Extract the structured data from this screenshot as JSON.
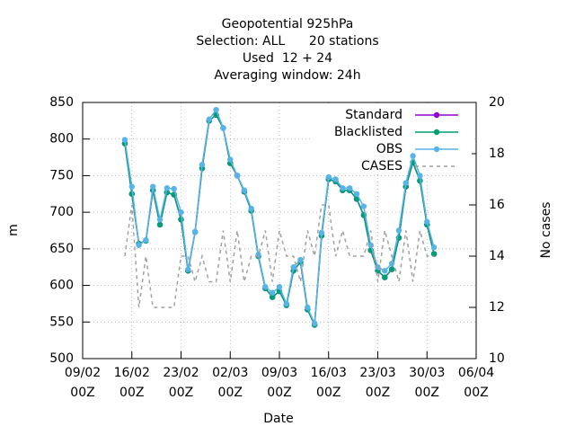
{
  "chart_data": {
    "type": "line",
    "title": "Geopotential 925hPa",
    "subtitle": [
      "Selection: ALL      20 stations",
      "Used  12 + 24",
      "Averaging window: 24h"
    ],
    "xlabel": "Date",
    "ylabel": "m",
    "y2label": "No cases",
    "x": [
      "15/02 00Z",
      "16/02 00Z",
      "17/02 00Z",
      "18/02 00Z",
      "19/02 00Z",
      "20/02 00Z",
      "21/02 00Z",
      "22/02 00Z",
      "23/02 00Z",
      "24/02 00Z",
      "25/02 00Z",
      "26/02 00Z",
      "27/02 00Z",
      "28/02 00Z",
      "01/03 00Z",
      "02/03 00Z",
      "03/03 00Z",
      "04/03 00Z",
      "05/03 00Z",
      "06/03 00Z",
      "07/03 00Z",
      "08/03 00Z",
      "09/03 00Z",
      "10/03 00Z",
      "11/03 00Z",
      "12/03 00Z",
      "13/03 00Z",
      "14/03 00Z",
      "15/03 00Z",
      "16/03 00Z",
      "17/03 00Z",
      "18/03 00Z",
      "19/03 00Z",
      "20/03 00Z",
      "21/03 00Z",
      "22/03 00Z",
      "23/03 00Z",
      "24/03 00Z",
      "25/03 00Z",
      "26/03 00Z",
      "27/03 00Z",
      "28/03 00Z",
      "29/03 00Z",
      "30/03 00Z",
      "31/03 00Z"
    ],
    "xlim": [
      "09/02 00Z",
      "06/04 00Z"
    ],
    "xticks": [
      "09/02 00Z",
      "16/02 00Z",
      "23/02 00Z",
      "02/03 00Z",
      "09/03 00Z",
      "16/03 00Z",
      "23/03 00Z",
      "30/03 00Z",
      "06/04 00Z"
    ],
    "ylim": [
      500,
      850
    ],
    "yticks": [
      500,
      550,
      600,
      650,
      700,
      750,
      800,
      850
    ],
    "y2lim": [
      10,
      20
    ],
    "y2ticks": [
      10,
      12,
      14,
      16,
      18,
      20
    ],
    "grid": true,
    "legend": "upper right",
    "series": [
      {
        "name": "Standard",
        "color": "#9400d3",
        "values": [
          794,
          725,
          657,
          661,
          730,
          683,
          727,
          724,
          690,
          620,
          673,
          760,
          825,
          833,
          815,
          767,
          750,
          728,
          702,
          640,
          596,
          584,
          592,
          573,
          620,
          632,
          567,
          546,
          668,
          745,
          742,
          730,
          730,
          718,
          696,
          648,
          620,
          611,
          622,
          665,
          735,
          768,
          743,
          683,
          643
        ]
      },
      {
        "name": "Blacklisted",
        "color": "#009e73",
        "values": [
          794,
          725,
          657,
          661,
          730,
          683,
          727,
          724,
          690,
          620,
          673,
          760,
          825,
          833,
          815,
          767,
          750,
          728,
          702,
          640,
          596,
          584,
          592,
          573,
          620,
          632,
          567,
          546,
          668,
          745,
          742,
          730,
          730,
          718,
          696,
          648,
          620,
          611,
          622,
          665,
          735,
          768,
          743,
          683,
          643
        ]
      },
      {
        "name": "OBS",
        "color": "#56b4e9",
        "values": [
          799,
          735,
          655,
          662,
          735,
          690,
          733,
          732,
          700,
          622,
          673,
          765,
          827,
          840,
          815,
          772,
          750,
          730,
          705,
          642,
          598,
          590,
          598,
          575,
          625,
          635,
          570,
          548,
          672,
          748,
          745,
          733,
          733,
          725,
          708,
          655,
          625,
          620,
          630,
          675,
          740,
          777,
          750,
          687,
          652
        ]
      },
      {
        "name": "CASES",
        "color": "#a0a0a0",
        "axis": "y2",
        "dashed": true,
        "values": [
          14,
          16,
          12,
          14,
          12,
          12,
          12,
          12,
          14,
          14,
          13,
          14,
          13,
          13,
          15,
          13,
          15,
          13,
          14,
          14,
          15,
          13,
          15,
          14,
          14,
          13,
          15,
          14,
          16,
          16,
          14,
          15,
          14,
          14,
          14,
          15,
          13,
          15,
          14,
          13,
          15,
          13,
          15,
          14,
          14
        ]
      }
    ]
  }
}
